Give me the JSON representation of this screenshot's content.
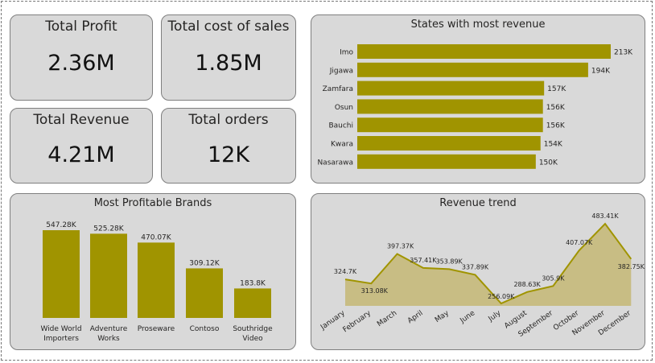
{
  "kpis": {
    "total_profit": {
      "label": "Total Profit",
      "value": "2.36M"
    },
    "total_cost": {
      "label": "Total cost of sales",
      "value": "1.85M"
    },
    "total_revenue": {
      "label": "Total Revenue",
      "value": "4.21M"
    },
    "total_orders": {
      "label": "Total orders",
      "value": "12K"
    }
  },
  "colors": {
    "accent": "#a09400",
    "card": "#d9d9d9",
    "area": "#c8bd84"
  },
  "chart_data": [
    {
      "type": "bar",
      "orientation": "horizontal",
      "title": "States with most revenue",
      "categories": [
        "Imo",
        "Jigawa",
        "Zamfara",
        "Osun",
        "Bauchi",
        "Kwara",
        "Nasarawa"
      ],
      "values": [
        213,
        194,
        157,
        156,
        156,
        154,
        150
      ],
      "labels": [
        "213K",
        "194K",
        "157K",
        "156K",
        "156K",
        "154K",
        "150K"
      ]
    },
    {
      "type": "bar",
      "title": "Most Profitable Brands",
      "categories": [
        [
          "Wide World",
          "Importers"
        ],
        [
          "Adventure",
          "Works"
        ],
        [
          "Proseware"
        ],
        [
          "Contoso"
        ],
        [
          "Southridge",
          "Video"
        ]
      ],
      "values": [
        547.28,
        525.28,
        470.07,
        309.12,
        183.8
      ],
      "labels": [
        "547.28K",
        "525.28K",
        "470.07K",
        "309.12K",
        "183.8K"
      ]
    },
    {
      "type": "area",
      "title": "Revenue trend",
      "categories": [
        "January",
        "February",
        "March",
        "April",
        "May",
        "June",
        "July",
        "August",
        "September",
        "October",
        "November",
        "December"
      ],
      "values": [
        324.7,
        313.08,
        397.37,
        357.41,
        353.89,
        337.89,
        256.09,
        288.63,
        305.9,
        407.07,
        483.41,
        382.75
      ],
      "labels": [
        "324.7K",
        "313.08K",
        "397.37K",
        "357.41K",
        "353.89K",
        "337.89K",
        "256.09K",
        "288.63K",
        "305.9K",
        "407.07K",
        "483.41K",
        "382.75K"
      ]
    }
  ]
}
